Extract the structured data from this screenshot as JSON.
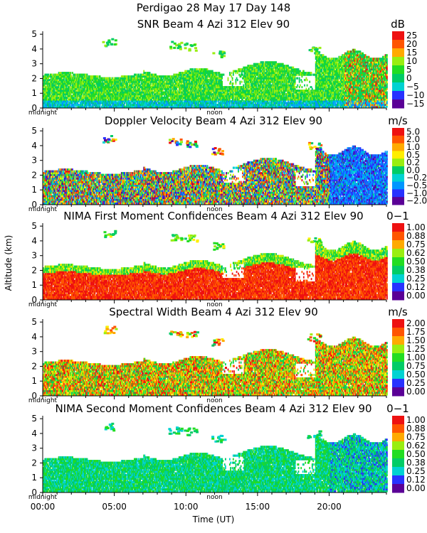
{
  "header": {
    "line1": "Perdigao  28 May 17 Day 148"
  },
  "y_axis_label": "Altitude (km)",
  "x_axis_label": "Time (UT)",
  "x_ticks": [
    "00:00",
    "05:00",
    "10:00",
    "15:00",
    "20:00"
  ],
  "x_small_labels": [
    "midnight",
    "noon"
  ],
  "colors": {
    "rainbow": [
      "#5a0096",
      "#2832ff",
      "#0096ff",
      "#00d2d2",
      "#00cc66",
      "#22dd22",
      "#99ee11",
      "#ffee00",
      "#ffaa00",
      "#ff5500",
      "#ee1111"
    ]
  },
  "chart_data": [
    {
      "type": "heatmap",
      "title": "SNR Beam 4 Azi 312 Elev 90",
      "unit": "dB",
      "x_range": [
        0,
        24
      ],
      "ylim": [
        0,
        5.2
      ],
      "y_ticks": [
        "0",
        "1",
        "2",
        "3",
        "4",
        "5"
      ],
      "colorbar_ticks": [
        "25",
        "20",
        "15",
        "10",
        "5",
        "0",
        "−5",
        "−10",
        "−15"
      ]
    },
    {
      "type": "heatmap",
      "title": "Doppler Velocity Beam 4 Azi 312 Elev 90",
      "unit": "m/s",
      "x_range": [
        0,
        24
      ],
      "ylim": [
        0,
        5.2
      ],
      "y_ticks": [
        "0",
        "1",
        "2",
        "3",
        "4",
        "5"
      ],
      "colorbar_ticks": [
        "5.0",
        "2.0",
        "1.0",
        "0.5",
        "0.2",
        "0.0",
        "−0.2",
        "−0.5",
        "−1.0",
        "−2.0"
      ]
    },
    {
      "type": "heatmap",
      "title": "NIMA First Moment Confidences Beam 4 Azi 312 Elev 90",
      "unit": "0−1",
      "x_range": [
        0,
        24
      ],
      "ylim": [
        0,
        5.2
      ],
      "y_ticks": [
        "0",
        "1",
        "2",
        "3",
        "4",
        "5"
      ],
      "colorbar_ticks": [
        "1.00",
        "0.88",
        "0.75",
        "0.62",
        "0.50",
        "0.38",
        "0.25",
        "0.12",
        "0.00"
      ]
    },
    {
      "type": "heatmap",
      "title": "Spectral Width Beam 4 Azi 312 Elev 90",
      "unit": "m/s",
      "x_range": [
        0,
        24
      ],
      "ylim": [
        0,
        5.2
      ],
      "y_ticks": [
        "0",
        "1",
        "2",
        "3",
        "4",
        "5"
      ],
      "colorbar_ticks": [
        "2.00",
        "1.75",
        "1.50",
        "1.25",
        "1.00",
        "0.75",
        "0.50",
        "0.25",
        "0.00"
      ]
    },
    {
      "type": "heatmap",
      "title": "NIMA Second Moment Confidences Beam 4 Azi 312 Elev 90",
      "unit": "0−1",
      "x_range": [
        0,
        24
      ],
      "ylim": [
        0,
        5.2
      ],
      "y_ticks": [
        "0",
        "1",
        "2",
        "3",
        "4",
        "5"
      ],
      "colorbar_ticks": [
        "1.00",
        "0.88",
        "0.75",
        "0.62",
        "0.50",
        "0.38",
        "0.25",
        "0.12",
        "0.00"
      ]
    }
  ]
}
